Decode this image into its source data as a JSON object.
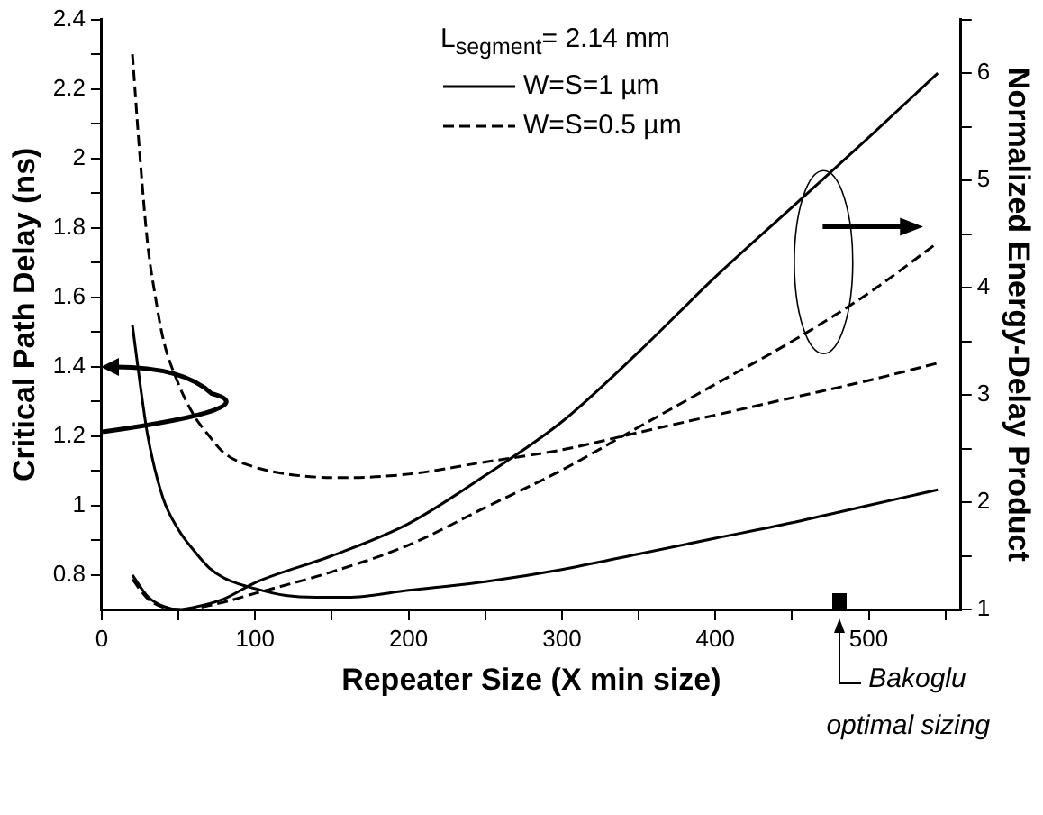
{
  "chart_data": {
    "type": "line",
    "xlabel": "Repeater Size (X min size)",
    "ylabel": "Critical Path Delay (ns)",
    "y2label": "Normalized Energy-Delay Product",
    "legend_title": "L$_{segment}$= 2.14 mm",
    "legend": "top left",
    "grid": false,
    "marker": "none",
    "xlim": [
      0,
      560
    ],
    "xticks": [
      0,
      {
        "value": 50,
        "label": null
      },
      100,
      {
        "value": 150,
        "label": null
      },
      200,
      {
        "value": 250,
        "label": null
      },
      300,
      {
        "value": 350,
        "label": null
      },
      400,
      {
        "value": 450,
        "label": null
      },
      500,
      {
        "value": 550,
        "label": null
      }
    ],
    "ylim": [
      0.7,
      2.4
    ],
    "yticks": [
      0.8,
      {
        "value": 0.9,
        "label": null
      },
      1.0,
      {
        "value": 1.1,
        "label": null
      },
      1.2,
      {
        "value": 1.3,
        "label": null
      },
      1.4,
      {
        "value": 1.5,
        "label": null
      },
      1.6,
      {
        "value": 1.7,
        "label": null
      },
      1.8,
      {
        "value": 1.9,
        "label": null
      },
      2.0,
      {
        "value": 2.1,
        "label": null
      },
      2.2,
      {
        "value": 2.3,
        "label": null
      },
      2.4
    ],
    "y2lim": [
      1,
      6.5
    ],
    "y2ticks": [
      1,
      {
        "value": 1.5,
        "label": null
      },
      2,
      {
        "value": 2.5,
        "label": null
      },
      3,
      {
        "value": 3.5,
        "label": null
      },
      4,
      {
        "value": 4.5,
        "label": null
      },
      5,
      {
        "value": 5.5,
        "label": null
      },
      6,
      {
        "value": 6.5,
        "label": null
      }
    ],
    "series": [
      {
        "name": "W=S=1 µm",
        "color": "#000000",
        "line_style": "solid",
        "x": [
          20,
          25,
          30,
          40,
          50,
          60,
          70,
          80,
          100,
          120,
          140,
          160,
          200,
          250,
          300,
          350,
          400,
          450,
          500,
          545
        ],
        "values": [
          1.52,
          1.35,
          1.2,
          1.02,
          0.93,
          0.87,
          0.82,
          0.79,
          0.76,
          0.74,
          0.735,
          0.735,
          0.755,
          0.78,
          0.815,
          0.86,
          0.905,
          0.95,
          1.0,
          1.045
        ]
      },
      {
        "name": "W=S=0.5 µm",
        "color": "#000000",
        "line_style": "dashed",
        "x": [
          20,
          25,
          30,
          35,
          40,
          50,
          60,
          70,
          80,
          100,
          130,
          160,
          200,
          250,
          300,
          350,
          400,
          450,
          500,
          545
        ],
        "values": [
          2.3,
          2.0,
          1.75,
          1.6,
          1.48,
          1.35,
          1.26,
          1.2,
          1.15,
          1.11,
          1.085,
          1.08,
          1.09,
          1.125,
          1.16,
          1.21,
          1.26,
          1.31,
          1.36,
          1.41
        ]
      },
      {
        "color": "#000000",
        "line_style": "solid",
        "axis": "y2",
        "x": [
          20,
          30,
          40,
          50,
          60,
          80,
          100,
          150,
          200,
          250,
          300,
          350,
          400,
          450,
          500,
          545
        ],
        "values": [
          1.32,
          1.12,
          1.03,
          1.0,
          1.02,
          1.1,
          1.25,
          1.5,
          1.8,
          2.25,
          2.75,
          3.4,
          4.1,
          4.75,
          5.4,
          6.0
        ]
      },
      {
        "color": "#000000",
        "line_style": "dashed",
        "axis": "y2",
        "x": [
          20,
          30,
          40,
          50,
          60,
          80,
          100,
          150,
          200,
          250,
          300,
          350,
          400,
          450,
          500,
          545
        ],
        "values": [
          1.28,
          1.1,
          1.02,
          1.0,
          1.01,
          1.07,
          1.15,
          1.35,
          1.6,
          1.95,
          2.3,
          2.7,
          3.1,
          3.5,
          3.95,
          4.42
        ]
      }
    ],
    "annotations": [
      "Bakoglu optimal sizing"
    ]
  }
}
